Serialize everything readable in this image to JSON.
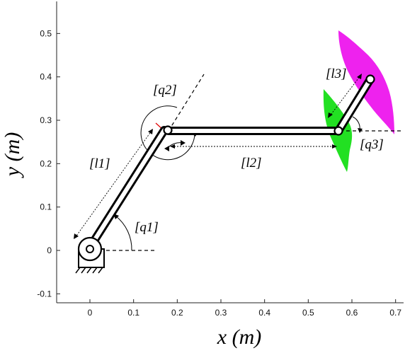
{
  "chart_data": {
    "type": "diagram",
    "xlabel": "x (m)",
    "ylabel": "y (m)",
    "xlim": [
      -0.07,
      0.71
    ],
    "ylim": [
      -0.12,
      0.57
    ],
    "x_ticks": [
      "0",
      "0.1",
      "0.2",
      "0.3",
      "0.4",
      "0.5",
      "0.6",
      "0.7"
    ],
    "y_ticks": [
      "-0.1",
      "0",
      "0.1",
      "0.2",
      "0.3",
      "0.4",
      "0.5"
    ],
    "x_tick_values": [
      0,
      0.1,
      0.2,
      0.3,
      0.4,
      0.5,
      0.6,
      0.7
    ],
    "y_tick_values": [
      -0.1,
      0,
      0.1,
      0.2,
      0.3,
      0.4,
      0.5
    ],
    "joints": [
      {
        "name": "base",
        "x": 0.0,
        "y": 0.0
      },
      {
        "name": "joint2",
        "x": 0.178,
        "y": 0.277
      },
      {
        "name": "joint3",
        "x": 0.572,
        "y": 0.277
      },
      {
        "name": "end",
        "x": 0.645,
        "y": 0.393
      }
    ],
    "labels": {
      "l1": "[l1]",
      "l2": "[l2]",
      "l3": "[l3]",
      "q1": "[q1]",
      "q2": "[q2]",
      "q3": "[q3]"
    },
    "colors": {
      "green_region": "#22e022",
      "magenta_region": "#ee22ee",
      "red_mark": "#e00000",
      "link": "#000000"
    }
  }
}
